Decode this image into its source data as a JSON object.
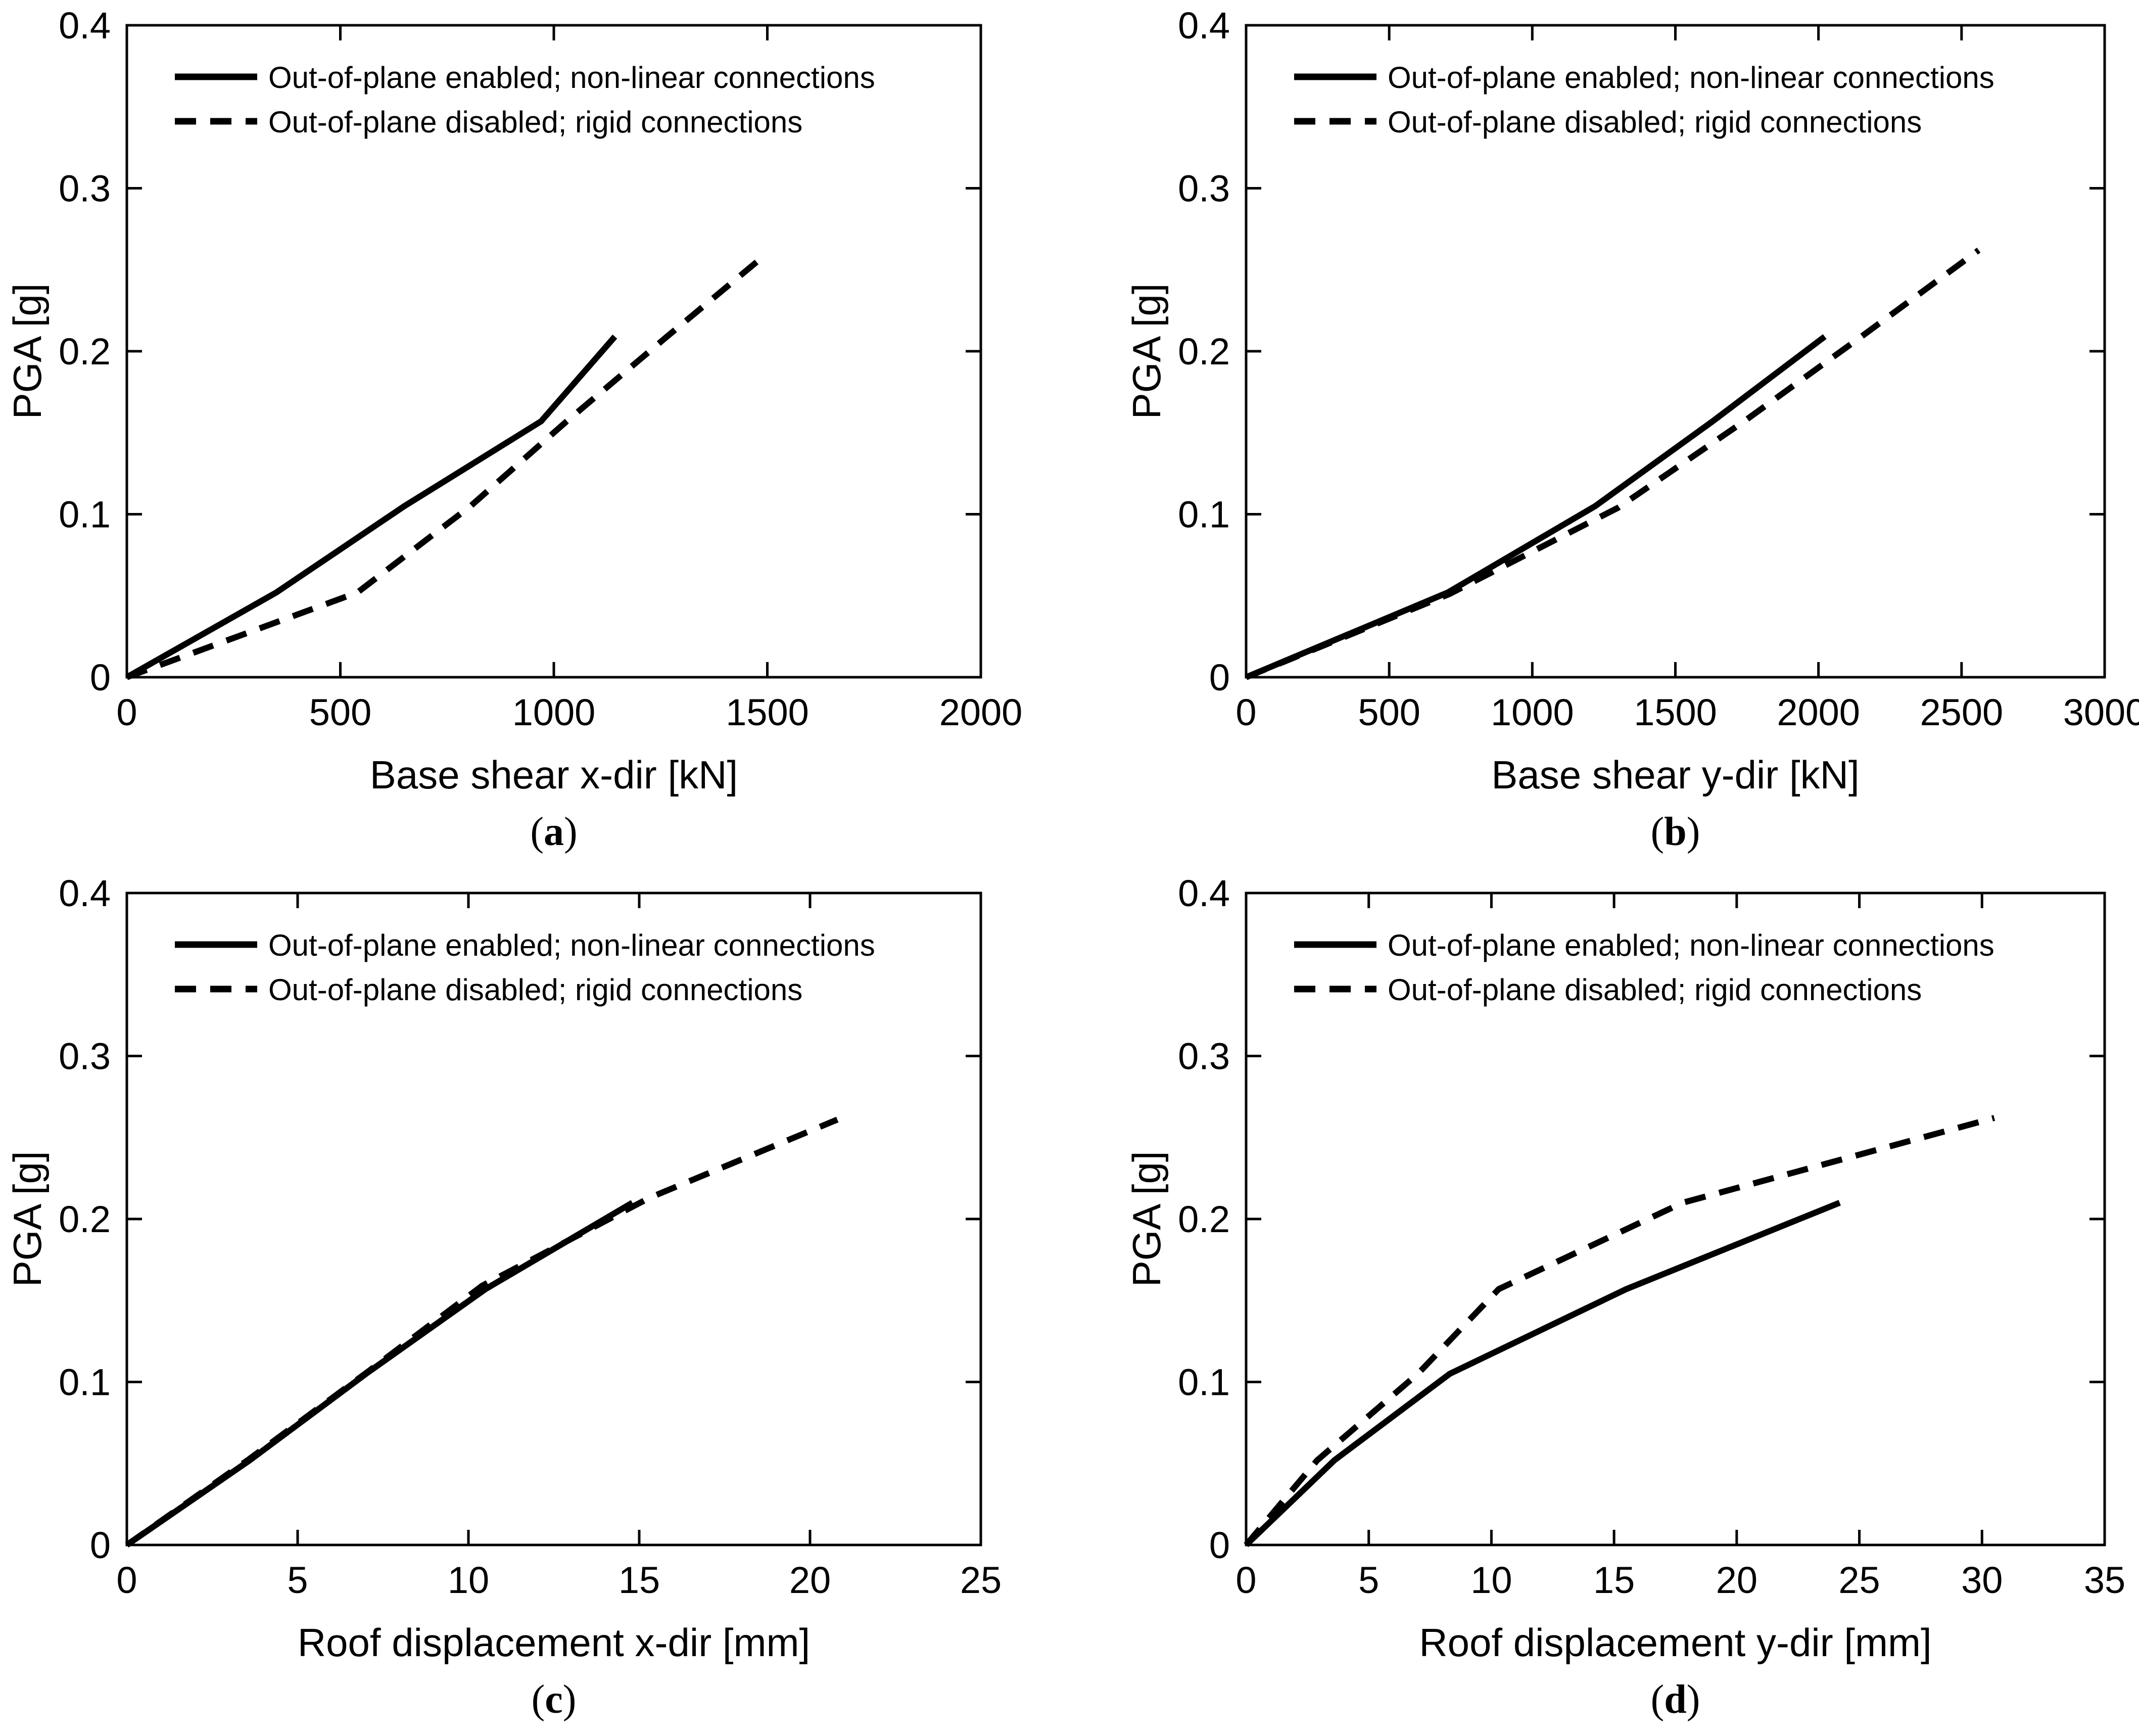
{
  "figure": {
    "background_color": "#ffffff",
    "line_color": "#000000",
    "text_color": "#000000",
    "ylabel": "PGA [g]",
    "legend": [
      "Out-of-plane enabled; non-linear connections",
      "Out-of-plane disabled; rigid connections"
    ]
  },
  "chart_data": [
    {
      "id": "a",
      "type": "line",
      "caption": "(a)",
      "caption_letter": "a",
      "xlabel": "Base shear x-dir [kN]",
      "ylabel": "PGA [g]",
      "xlim": [
        0,
        2000
      ],
      "ylim": [
        0,
        0.4
      ],
      "xticks": [
        0,
        500,
        1000,
        1500,
        2000
      ],
      "yticks": [
        0,
        0.1,
        0.2,
        0.3,
        0.4
      ],
      "grid": false,
      "legend_position": "top-left",
      "series": [
        {
          "name": "Out-of-plane enabled; non-linear connections",
          "style": "solid",
          "points": [
            [
              0,
              0
            ],
            [
              350,
              0.052
            ],
            [
              650,
              0.105
            ],
            [
              970,
              0.157
            ],
            [
              1143,
              0.209
            ]
          ]
        },
        {
          "name": "Out-of-plane disabled; rigid connections",
          "style": "dashed",
          "points": [
            [
              0,
              0
            ],
            [
              540,
              0.052
            ],
            [
              805,
              0.105
            ],
            [
              1030,
              0.157
            ],
            [
              1265,
              0.209
            ],
            [
              1490,
              0.258
            ]
          ]
        }
      ]
    },
    {
      "id": "b",
      "type": "line",
      "caption": "(b)",
      "caption_letter": "b",
      "xlabel": "Base shear y-dir [kN]",
      "ylabel": "PGA [g]",
      "xlim": [
        0,
        3000
      ],
      "ylim": [
        0,
        0.4
      ],
      "xticks": [
        0,
        500,
        1000,
        1500,
        2000,
        2500,
        3000
      ],
      "yticks": [
        0,
        0.1,
        0.2,
        0.3,
        0.4
      ],
      "grid": false,
      "legend_position": "top-left",
      "series": [
        {
          "name": "Out-of-plane enabled; non-linear connections",
          "style": "solid",
          "points": [
            [
              0,
              0
            ],
            [
              705,
              0.052
            ],
            [
              1220,
              0.105
            ],
            [
              1630,
              0.157
            ],
            [
              2022,
              0.209
            ]
          ]
        },
        {
          "name": "Out-of-plane disabled; rigid connections",
          "style": "dashed",
          "points": [
            [
              0,
              0
            ],
            [
              710,
              0.051
            ],
            [
              1300,
              0.104
            ],
            [
              1740,
              0.157
            ],
            [
              2150,
              0.209
            ],
            [
              2560,
              0.262
            ]
          ]
        }
      ]
    },
    {
      "id": "c",
      "type": "line",
      "caption": "(c)",
      "caption_letter": "c",
      "xlabel": "Roof displacement x-dir [mm]",
      "ylabel": "PGA [g]",
      "xlim": [
        0,
        25
      ],
      "ylim": [
        0,
        0.4
      ],
      "xticks": [
        0,
        5,
        10,
        15,
        20,
        25
      ],
      "yticks": [
        0,
        0.1,
        0.2,
        0.3,
        0.4
      ],
      "grid": false,
      "legend_position": "top-left",
      "series": [
        {
          "name": "Out-of-plane enabled; non-linear connections",
          "style": "solid",
          "points": [
            [
              0,
              0
            ],
            [
              3.6,
              0.052
            ],
            [
              7.0,
              0.105
            ],
            [
              10.5,
              0.157
            ],
            [
              14.8,
              0.21
            ]
          ]
        },
        {
          "name": "Out-of-plane disabled; rigid connections",
          "style": "dashed",
          "points": [
            [
              0,
              0
            ],
            [
              3.6,
              0.053
            ],
            [
              7.1,
              0.107
            ],
            [
              10.4,
              0.159
            ],
            [
              15.3,
              0.213
            ],
            [
              20.8,
              0.261
            ]
          ]
        }
      ]
    },
    {
      "id": "d",
      "type": "line",
      "caption": "(d)",
      "caption_letter": "d",
      "xlabel": "Roof displacement y-dir [mm]",
      "ylabel": "PGA [g]",
      "xlim": [
        0,
        35
      ],
      "ylim": [
        0,
        0.4
      ],
      "xticks": [
        0,
        5,
        10,
        15,
        20,
        25,
        30,
        35
      ],
      "yticks": [
        0,
        0.1,
        0.2,
        0.3,
        0.4
      ],
      "grid": false,
      "legend_position": "top-left",
      "series": [
        {
          "name": "Out-of-plane enabled; non-linear connections",
          "style": "solid",
          "points": [
            [
              0,
              0
            ],
            [
              3.6,
              0.052
            ],
            [
              8.3,
              0.105
            ],
            [
              15.5,
              0.157
            ],
            [
              24.2,
              0.21
            ]
          ]
        },
        {
          "name": "Out-of-plane disabled; rigid connections",
          "style": "dashed",
          "points": [
            [
              0,
              0
            ],
            [
              2.9,
              0.052
            ],
            [
              7.0,
              0.105
            ],
            [
              10.3,
              0.157
            ],
            [
              17.8,
              0.21
            ],
            [
              30.5,
              0.262
            ]
          ]
        }
      ]
    }
  ]
}
